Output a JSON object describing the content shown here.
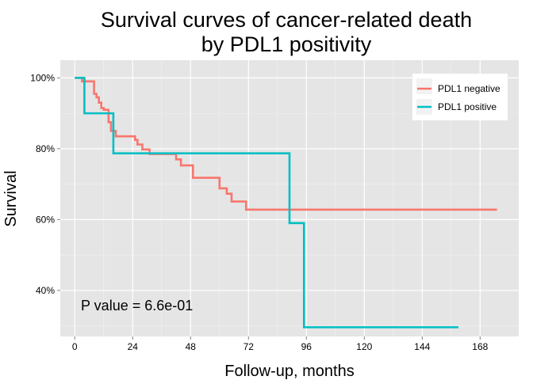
{
  "chart_data": {
    "type": "line",
    "title_line1": "Survival curves of cancer-related death",
    "title_line2": "by PDL1 positivity",
    "xlabel": "Follow-up, months",
    "ylabel": "Survival",
    "xlim": [
      -6,
      184
    ],
    "ylim": [
      0.27,
      1.05
    ],
    "x_ticks": [
      0,
      24,
      48,
      72,
      96,
      120,
      144,
      168
    ],
    "x_tick_labels": [
      "0",
      "24",
      "48",
      "72",
      "96",
      "120",
      "144",
      "168"
    ],
    "y_ticks": [
      0.4,
      0.6,
      0.8,
      1.0
    ],
    "y_tick_labels": [
      "40%",
      "60%",
      "80%",
      "100%"
    ],
    "grid": true,
    "legend_position": "top-right",
    "annotation": "P value = 6.6e-01",
    "series": [
      {
        "name": "PDL1 negative",
        "color": "#F8766D",
        "step": [
          [
            0,
            1.0
          ],
          [
            3,
            0.99
          ],
          [
            8,
            0.955
          ],
          [
            9,
            0.945
          ],
          [
            10,
            0.93
          ],
          [
            11,
            0.915
          ],
          [
            12,
            0.91
          ],
          [
            14,
            0.875
          ],
          [
            15,
            0.85
          ],
          [
            17,
            0.835
          ],
          [
            25,
            0.825
          ],
          [
            26,
            0.812
          ],
          [
            28,
            0.798
          ],
          [
            31,
            0.785
          ],
          [
            42,
            0.77
          ],
          [
            44,
            0.753
          ],
          [
            49,
            0.718
          ],
          [
            60,
            0.688
          ],
          [
            63,
            0.673
          ],
          [
            65,
            0.651
          ],
          [
            71,
            0.628
          ],
          [
            175,
            0.628
          ]
        ]
      },
      {
        "name": "PDL1 positive",
        "color": "#00BFC4",
        "step": [
          [
            0,
            1.0
          ],
          [
            4,
            0.9
          ],
          [
            16,
            0.787
          ],
          [
            89,
            0.59
          ],
          [
            95,
            0.296
          ],
          [
            159,
            0.296
          ]
        ]
      }
    ]
  }
}
